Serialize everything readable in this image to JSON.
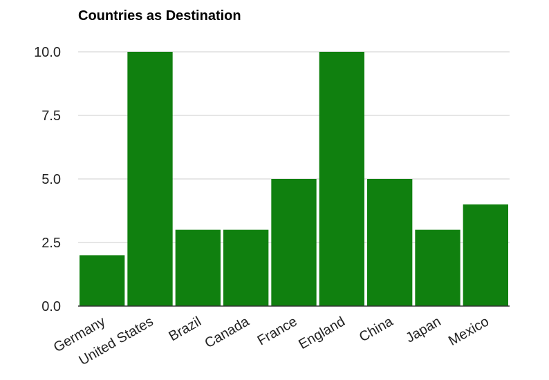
{
  "chart_data": {
    "type": "bar",
    "title": "Countries as Destination",
    "categories": [
      "Germany",
      "United States",
      "Brazil",
      "Canada",
      "France",
      "England",
      "China",
      "Japan",
      "Mexico"
    ],
    "values": [
      2,
      10,
      3,
      3,
      5,
      10,
      5,
      3,
      4
    ],
    "y_ticks": [
      "0.0",
      "2.5",
      "5.0",
      "7.5",
      "10.0"
    ],
    "xlabel": "",
    "ylabel": "",
    "ylim": [
      0,
      10
    ],
    "grid": true,
    "legend": "none",
    "bar_color": "#10800f",
    "grid_color": "#cccccc",
    "axis_color": "#333333"
  }
}
